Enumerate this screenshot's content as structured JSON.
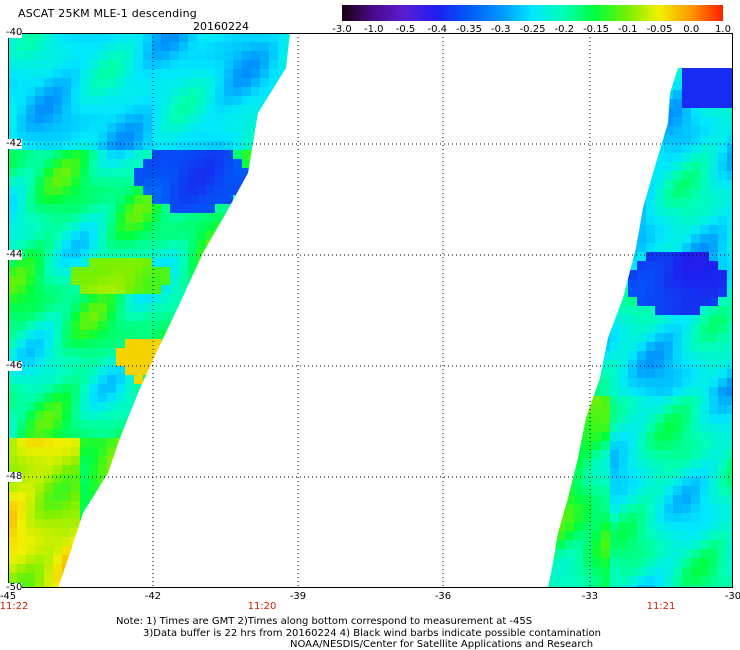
{
  "header": {
    "title": "ASCAT 25KM MLE-1 descending",
    "date": "20160224"
  },
  "colorbar": {
    "ticks": [
      "-3.0",
      "-1.0",
      "-0.5",
      "-0.4",
      "-0.35",
      "-0.3",
      "-0.25",
      "-0.2",
      "-0.15",
      "-0.1",
      "-0.05",
      "0.0",
      "1.0"
    ],
    "colors": [
      "#1a0010",
      "#4b0a8c",
      "#5a1ed4",
      "#1e1ef0",
      "#005af8",
      "#0096ff",
      "#00e6ff",
      "#00ffb4",
      "#00ff3c",
      "#78f000",
      "#f0f000",
      "#ff9600",
      "#ff1e00"
    ]
  },
  "map": {
    "lat_labels": [
      "-40",
      "-42",
      "-44",
      "-46",
      "-48",
      "-50"
    ],
    "lon_labels": [
      "-45",
      "-42",
      "-39",
      "-36",
      "-33",
      "-30"
    ],
    "time_labels": [
      "11:22",
      "11:20",
      "11:21"
    ],
    "gridline_color": "#000000"
  },
  "notes": {
    "line1": "Note: 1) Times are GMT 2)Times along bottom correspond to measurement at -45S",
    "line2": "3)Data buffer is 22 hrs from 20160224 4) Black wind barbs indicate possible contamination",
    "line3": "NOAA/NESDIS/Center for Satellite Applications and Research"
  }
}
